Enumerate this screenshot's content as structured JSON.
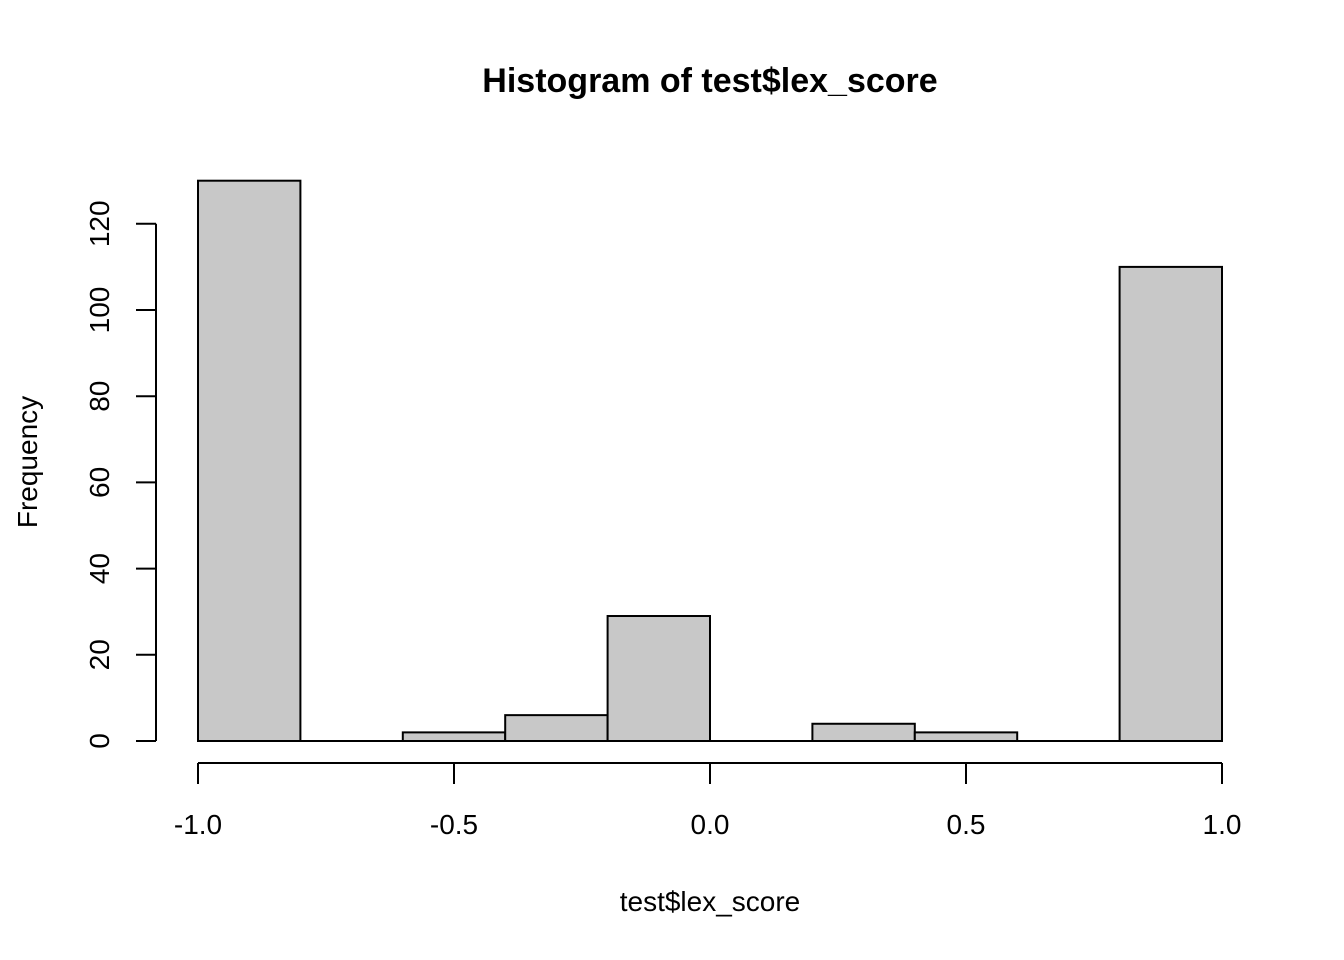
{
  "chart_data": {
    "type": "bar",
    "title": "Histogram of test$lex_score",
    "xlabel": "test$lex_score",
    "ylabel": "Frequency",
    "xlim": [
      -1.0,
      1.0
    ],
    "ylim": [
      0,
      130
    ],
    "grid": false,
    "bar_color": "#c8c8c8",
    "bins": [
      {
        "start": -1.0,
        "end": -0.8,
        "count": 130
      },
      {
        "start": -0.8,
        "end": -0.6,
        "count": 0
      },
      {
        "start": -0.6,
        "end": -0.4,
        "count": 2
      },
      {
        "start": -0.4,
        "end": -0.2,
        "count": 6
      },
      {
        "start": -0.2,
        "end": 0.0,
        "count": 29
      },
      {
        "start": 0.0,
        "end": 0.2,
        "count": 0
      },
      {
        "start": 0.2,
        "end": 0.4,
        "count": 4
      },
      {
        "start": 0.4,
        "end": 0.6,
        "count": 2
      },
      {
        "start": 0.6,
        "end": 0.8,
        "count": 0
      },
      {
        "start": 0.8,
        "end": 1.0,
        "count": 110
      }
    ],
    "x_ticks": [
      {
        "value": -1.0,
        "label": "-1.0"
      },
      {
        "value": -0.5,
        "label": "-0.5"
      },
      {
        "value": 0.0,
        "label": "0.0"
      },
      {
        "value": 0.5,
        "label": "0.5"
      },
      {
        "value": 1.0,
        "label": "1.0"
      }
    ],
    "y_ticks": [
      {
        "value": 0,
        "label": "0"
      },
      {
        "value": 20,
        "label": "20"
      },
      {
        "value": 40,
        "label": "40"
      },
      {
        "value": 60,
        "label": "60"
      },
      {
        "value": 80,
        "label": "80"
      },
      {
        "value": 100,
        "label": "100"
      },
      {
        "value": 120,
        "label": "120"
      }
    ]
  }
}
